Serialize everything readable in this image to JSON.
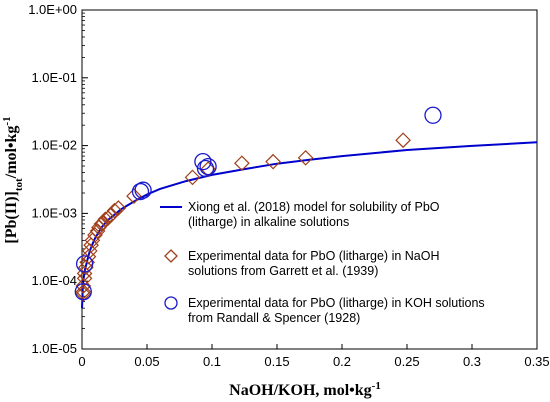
{
  "chart_data": {
    "type": "scatter",
    "xlabel": "NaOH/KOH, mol•kg",
    "xlabel_sup": "-1",
    "ylabel": "[Pb(II)]",
    "ylabel_sub": "tot",
    "ylabel_rest": "/mol•kg",
    "ylabel_sup": "-1",
    "xlim": [
      0,
      0.35
    ],
    "ylim": [
      1e-05,
      1
    ],
    "yscale": "log",
    "x_ticks": [
      "0",
      "0.05",
      "0.1",
      "0.15",
      "0.2",
      "0.25",
      "0.3",
      "0.35"
    ],
    "y_ticks": [
      "1.0E-05",
      "1.0E-04",
      "1.0E-03",
      "1.0E-02",
      "1.0E-01",
      "1.0E+00"
    ],
    "grid": false,
    "legend_position": "inside-bottom-right",
    "series": [
      {
        "name": "Xiong et al. (2018) model for solubility of PbO (litharge) in alkaline solutions",
        "legend_lines": [
          "Xiong et al. (2018) model for solubility of PbO",
          "(litharge) in alkaline solutions"
        ],
        "kind": "line",
        "color": "#0000cc",
        "x": [
          0,
          0.0005,
          0.001,
          0.002,
          0.004,
          0.006,
          0.008,
          0.01,
          0.015,
          0.02,
          0.03,
          0.04,
          0.05,
          0.06,
          0.08,
          0.1,
          0.125,
          0.15,
          0.175,
          0.2,
          0.25,
          0.3,
          0.35
        ],
        "y": [
          4e-05,
          7.5e-05,
          0.0001,
          0.00014,
          0.0002,
          0.00028,
          0.00035,
          0.00043,
          0.00062,
          0.0008,
          0.00115,
          0.0015,
          0.0019,
          0.0023,
          0.003,
          0.0037,
          0.0045,
          0.0054,
          0.0062,
          0.007,
          0.0086,
          0.0099,
          0.0112
        ]
      },
      {
        "name": "Experimental data for PbO (litharge) in NaOH solutions from Garrett et al. (1939)",
        "legend_lines": [
          "Experimental data for PbO (litharge) in NaOH",
          "solutions from Garrett et al. (1939)"
        ],
        "kind": "diamond",
        "color": "#a0401a",
        "x": [
          0.001,
          0.001,
          0.001,
          0.002,
          0.002,
          0.003,
          0.004,
          0.005,
          0.006,
          0.007,
          0.008,
          0.01,
          0.012,
          0.013,
          0.015,
          0.016,
          0.018,
          0.02,
          0.022,
          0.025,
          0.028,
          0.04,
          0.085,
          0.097,
          0.123,
          0.147,
          0.172,
          0.247
        ],
        "y": [
          7e-05,
          6.5e-05,
          8.5e-05,
          0.00011,
          0.00013,
          0.00016,
          0.00019,
          0.00023,
          0.00028,
          0.00034,
          0.0004,
          0.00048,
          0.00055,
          0.00062,
          0.0007,
          0.00072,
          0.00082,
          0.00085,
          0.00093,
          0.0011,
          0.0012,
          0.0018,
          0.0034,
          0.0045,
          0.0055,
          0.0058,
          0.0066,
          0.012
        ]
      },
      {
        "name": "Experimental data for PbO (litharge) in KOH solutions from Randall & Spencer (1928)",
        "legend_lines": [
          "Experimental data for PbO (litharge) in KOH solutions",
          "from Randall & Spencer (1928)"
        ],
        "kind": "circle",
        "color": "#1a1acc",
        "x": [
          0.001,
          0.002,
          0.045,
          0.047,
          0.093,
          0.095,
          0.097,
          0.27
        ],
        "y": [
          7e-05,
          0.00018,
          0.0021,
          0.0022,
          0.0058,
          0.0046,
          0.0049,
          0.028
        ]
      }
    ]
  }
}
